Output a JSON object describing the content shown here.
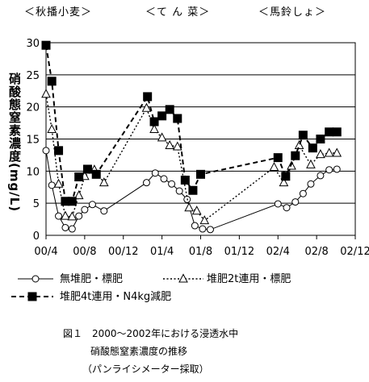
{
  "chart_data": {
    "type": "line",
    "crop_labels": [
      "＜秋播小麦＞",
      "＜て ん 菜＞",
      "＜馬鈴しょ＞"
    ],
    "ylabel": "硝酸態窒素濃度(mg/L)",
    "ylim": [
      0,
      30
    ],
    "yticks": [
      0,
      5,
      10,
      15,
      20,
      25,
      30
    ],
    "xticks": [
      "00/4",
      "00/8",
      "00/12",
      "01/4",
      "01/8",
      "01/12",
      "02/4",
      "02/8",
      "02/12"
    ],
    "xtick_months": [
      0,
      4,
      8,
      12,
      16,
      20,
      24,
      28,
      32
    ],
    "xlim_months": [
      0,
      32
    ],
    "grid": "horizontal",
    "series": [
      {
        "name": "無堆肥・標肥",
        "marker": "circle",
        "line": "solid",
        "points": [
          [
            0,
            13.2
          ],
          [
            0.6,
            7.8
          ],
          [
            1.3,
            3.0
          ],
          [
            2.0,
            1.2
          ],
          [
            2.7,
            1.0
          ],
          [
            3.4,
            3.0
          ],
          [
            4.0,
            4.0
          ],
          [
            4.8,
            4.8
          ],
          [
            6.0,
            3.8
          ],
          [
            10.4,
            8.2
          ],
          [
            11.3,
            9.7
          ],
          [
            12.2,
            8.8
          ],
          [
            13.0,
            8.0
          ],
          [
            13.8,
            6.9
          ],
          [
            14.6,
            5.6
          ],
          [
            15.4,
            1.5
          ],
          [
            16.2,
            1.0
          ],
          [
            17.0,
            0.9
          ],
          [
            24.0,
            4.9
          ],
          [
            24.9,
            4.3
          ],
          [
            25.8,
            5.2
          ],
          [
            26.6,
            6.5
          ],
          [
            27.4,
            8.0
          ],
          [
            28.4,
            9.3
          ],
          [
            29.3,
            10.2
          ],
          [
            30.1,
            10.3
          ]
        ]
      },
      {
        "name": "堆肥2t連用・標肥",
        "marker": "triangle",
        "line": "dotted",
        "points": [
          [
            0,
            22.0
          ],
          [
            0.6,
            16.5
          ],
          [
            1.3,
            8.0
          ],
          [
            2.0,
            3.0
          ],
          [
            2.7,
            2.9
          ],
          [
            3.4,
            6.2
          ],
          [
            4.0,
            9.2
          ],
          [
            5.0,
            10.2
          ],
          [
            6.0,
            8.2
          ],
          [
            10.4,
            19.8
          ],
          [
            11.2,
            16.5
          ],
          [
            12.0,
            15.2
          ],
          [
            12.8,
            14.0
          ],
          [
            13.6,
            13.8
          ],
          [
            14.8,
            4.3
          ],
          [
            15.6,
            3.8
          ],
          [
            16.4,
            2.3
          ],
          [
            23.6,
            10.6
          ],
          [
            24.6,
            8.2
          ],
          [
            25.4,
            10.8
          ],
          [
            26.2,
            14.0
          ],
          [
            27.4,
            11.0
          ],
          [
            28.4,
            12.6
          ],
          [
            29.3,
            12.8
          ],
          [
            30.1,
            12.8
          ]
        ]
      },
      {
        "name": "堆肥4t連用・N4kg減肥",
        "marker": "square",
        "line": "dashed",
        "points": [
          [
            0,
            29.6
          ],
          [
            0.6,
            24.0
          ],
          [
            1.3,
            13.2
          ],
          [
            2.0,
            5.3
          ],
          [
            2.7,
            5.3
          ],
          [
            3.4,
            9.1
          ],
          [
            4.3,
            10.3
          ],
          [
            5.2,
            9.5
          ],
          [
            10.5,
            21.6
          ],
          [
            11.2,
            17.7
          ],
          [
            12.0,
            18.6
          ],
          [
            12.8,
            19.6
          ],
          [
            13.6,
            18.2
          ],
          [
            14.4,
            8.6
          ],
          [
            15.2,
            7.0
          ],
          [
            16.0,
            9.5
          ],
          [
            24.0,
            12.1
          ],
          [
            24.8,
            9.2
          ],
          [
            25.8,
            12.4
          ],
          [
            26.6,
            15.6
          ],
          [
            27.6,
            13.6
          ],
          [
            28.4,
            15.0
          ],
          [
            29.3,
            16.1
          ],
          [
            30.1,
            16.1
          ]
        ]
      }
    ]
  },
  "caption": {
    "line1": "図１　2000～2002年における浸透水中",
    "line2": "硝酸態窒素濃度の推移",
    "line3": "（パンライシメーター採取）"
  },
  "colors": {
    "ink": "#000000",
    "fill": "#ffffff"
  }
}
